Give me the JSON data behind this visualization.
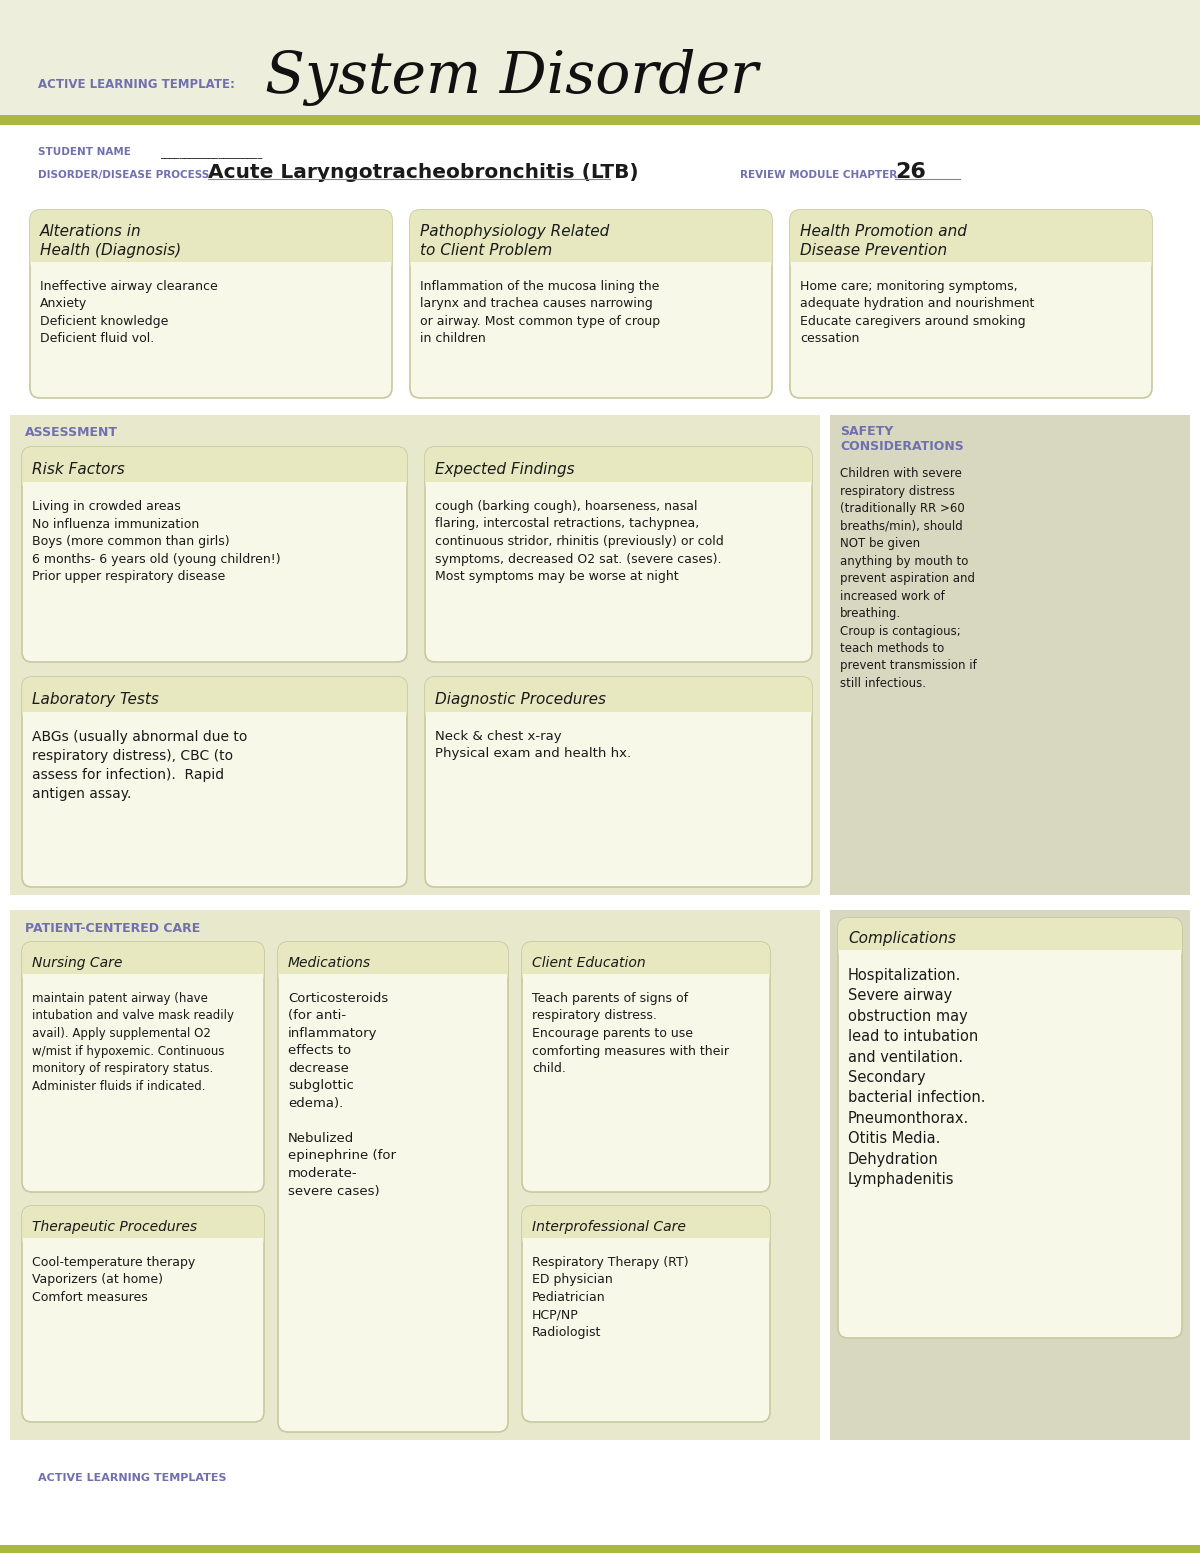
{
  "bg_color": "#f5f5e8",
  "header_bg": "#eeeedd",
  "olive_bar": "#a8b840",
  "white": "#ffffff",
  "light_gray": "#d8d8c8",
  "box_bg": "#f8f8e8",
  "box_border": "#c8c8a0",
  "box_header_bg": "#e8e8c0",
  "section_bg": "#e8e8cc",
  "text_dark": "#1a1a1a",
  "purple_text": "#7070b0",
  "title_main": "System Disorder",
  "title_label": "ACTIVE LEARNING TEMPLATE:",
  "subtitle_label1": "STUDENT NAME",
  "subtitle_val2": "Acute Laryngotracheobronchitis (LTB)",
  "subtitle_label2": "DISORDER/DISEASE PROCESS",
  "subtitle_label3": "REVIEW MODULE CHAPTER",
  "subtitle_val3": "26",
  "section1_title": "Alterations in\nHealth (Diagnosis)",
  "section1_body": "Ineffective airway clearance\nAnxiety\nDeficient knowledge\nDeficient fluid vol.",
  "section2_title": "Pathophysiology Related\nto Client Problem",
  "section2_body": "Inflammation of the mucosa lining the\nlarynx and trachea causes narrowing\nor airway. Most common type of croup\nin children",
  "section3_title": "Health Promotion and\nDisease Prevention",
  "section3_body": "Home care; monitoring symptoms,\nadequate hydration and nourishment\nEducate caregivers around smoking\ncessation",
  "assess_label": "ASSESSMENT",
  "safety_label": "SAFETY\nCONSIDERATIONS",
  "safety_body": "Children with severe\nrespiratory distress\n(traditionally RR >60\nbreaths/min), should\nNOT be given\nanything by mouth to\nprevent aspiration and\nincreased work of\nbreathing.\nCroup is contagious;\nteach methods to\nprevent transmission if\nstill infectious.",
  "risk_title": "Risk Factors",
  "risk_body": "Living in crowded areas\nNo influenza immunization\nBoys (more common than girls)\n6 months- 6 years old (young children!)\nPrior upper respiratory disease",
  "expected_title": "Expected Findings",
  "expected_body": "cough (barking cough), hoarseness, nasal\nflaring, intercostal retractions, tachypnea,\ncontinuous stridor, rhinitis (previously) or cold\nsymptoms, decreased O2 sat. (severe cases).\nMost symptoms may be worse at night",
  "lab_title": "Laboratory Tests",
  "lab_body": "ABGs (usually abnormal due to\nrespiratory distress), CBC (to\nassess for infection).  Rapid\nantigen assay.",
  "diag_title": "Diagnostic Procedures",
  "diag_body": "Neck & chest x-ray\nPhysical exam and health hx.",
  "patient_label": "PATIENT-CENTERED CARE",
  "nursing_title": "Nursing Care",
  "nursing_body": "maintain patent airway (have\nintubation and valve mask readily\navail). Apply supplemental O2\nw/mist if hypoxemic. Continuous\nmonitory of respiratory status.\nAdminister fluids if indicated.",
  "meds_title": "Medications",
  "meds_body": "Corticosteroids\n(for anti-\ninflammatory\neffects to\ndecrease\nsubglottic\nedema).\n\nNebulized\nepinephrine (for\nmoderate-\nsevere cases)",
  "client_title": "Client Education",
  "client_body": "Teach parents of signs of\nrespiratory distress.\nEncourage parents to use\ncomforting measures with their\nchild.",
  "complications_title": "Complications",
  "complications_body": "Hospitalization.\nSevere airway\nobstruction may\nlead to intubation\nand ventilation.\nSecondary\nbacterial infection.\nPneumonthorax.\nOtitis Media.\nDehydration\nLymphadenitis",
  "therapeutic_title": "Therapeutic Procedures",
  "therapeutic_body": "Cool-temperature therapy\nVaporizers (at home)\nComfort measures",
  "interprof_title": "Interprofessional Care",
  "interprof_body": "Respiratory Therapy (RT)\nED physician\nPediatrician\nHCP/NP\nRadiologist",
  "footer": "ACTIVE LEARNING TEMPLATES"
}
